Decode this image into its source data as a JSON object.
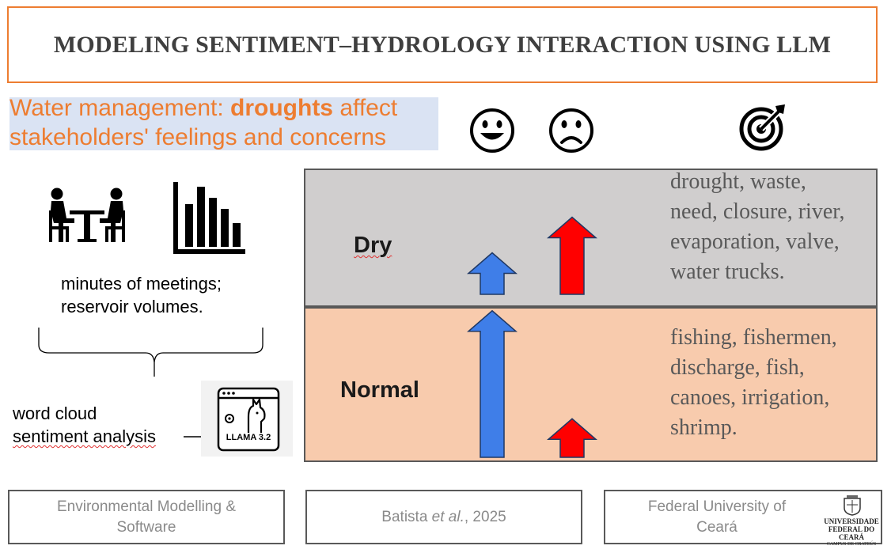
{
  "title": "MODELING SENTIMENT–HYDROLOGY INTERACTION USING LLM",
  "subtitle": {
    "line1_pre": "Water management: ",
    "line1_bold": "droughts",
    "line1_post": " affect",
    "line2": "stakeholders' feelings and concerns"
  },
  "icons": {
    "happy": "happy-face-icon",
    "sad": "sad-face-icon",
    "target": "target-icon",
    "meeting": "meeting-icon",
    "bar_chart": "bar-chart-icon",
    "llama": "llama-icon"
  },
  "inputs_text": {
    "line1": "minutes of meetings;",
    "line2": "reservoir volumes."
  },
  "methods_text": {
    "line1": "word cloud",
    "line2": "sentiment analysis"
  },
  "llama_label": "LLAMA 3.2",
  "levels": {
    "dry": {
      "label": "Dry",
      "positive_arrow_level": 0.35,
      "negative_arrow_level": 0.65,
      "words": [
        "drought, waste,",
        "need, closure, river,",
        "evaporation, valve,",
        "water trucks."
      ]
    },
    "normal": {
      "label": "Normal",
      "positive_arrow_level": 0.95,
      "negative_arrow_level": 0.25,
      "words": [
        "fishing, fishermen,",
        "discharge, fish,",
        "canoes, irrigation,",
        "shrimp."
      ]
    }
  },
  "colors": {
    "accent": "#ed7d31",
    "positive_arrow": "#3f7ee8",
    "negative_arrow": "#ff0000",
    "dry_bg": "#d0cece",
    "normal_bg": "#f8cbad",
    "subtitle_bg": "#dae3f3"
  },
  "footer": {
    "journal_line1": "Environmental Modelling &",
    "journal_line2": "Software",
    "citation_pre": "Batista ",
    "citation_italic": "et al.",
    "citation_post": ", 2025",
    "university_line1": "Federal University of",
    "university_line2": "Ceará",
    "logo_line1": "UNIVERSIDADE",
    "logo_line2": "FEDERAL DO CEARÁ",
    "logo_line3": "CAMPUS DE CRATEÚS"
  }
}
